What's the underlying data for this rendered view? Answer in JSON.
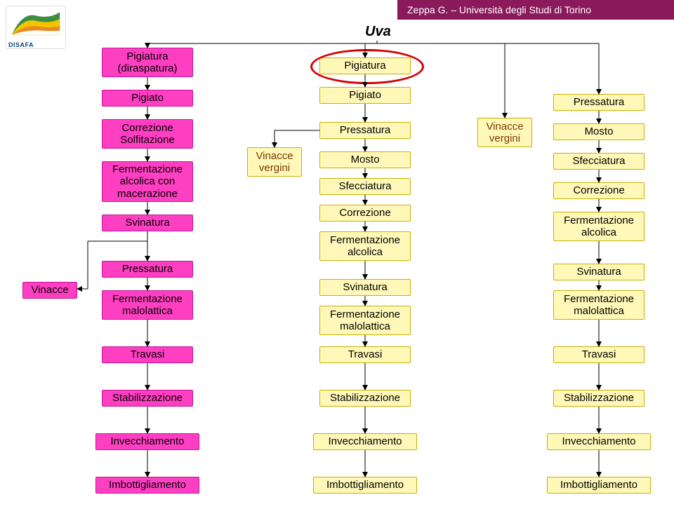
{
  "header": "Zeppa G. – Università degli Studi di Torino",
  "logo_text": "DISAFA",
  "uva": "Uva",
  "col1": {
    "vinacce": "Vinacce",
    "steps": [
      "Pigiatura\n(diraspatura)",
      "Pigiato",
      "Correzione\nSolfitazione",
      "Fermentazione\nalcolica con\nmacerazione",
      "Svinatura",
      "Pressatura",
      "Fermentazione\nmalolattica",
      "Travasi",
      "Stabilizzazione",
      "Invecchiamento",
      "Imbottigliamento"
    ]
  },
  "col2": {
    "vinacce_vergini": "Vinacce\nvergini",
    "steps": [
      "Pigiatura",
      "Pigiato",
      "Pressatura",
      "Mosto",
      "Sfecciatura",
      "Correzione",
      "Fermentazione\nalcolica",
      "Svinatura",
      "Fermentazione\nmalolattica",
      "Travasi",
      "Stabilizzazione",
      "Invecchiamento",
      "Imbottigliamento"
    ]
  },
  "col3": {
    "vinacce_vergini": "Vinacce\nvergini",
    "steps": [
      "Pressatura",
      "Mosto",
      "Sfecciatura",
      "Correzione",
      "Fermentazione\nalcolica",
      "Svinatura",
      "Fermentazione\nmalolattica",
      "Travasi",
      "Stabilizzazione",
      "Invecchiamento",
      "Imbottigliamento"
    ]
  },
  "colors": {
    "magenta_fill": "#ff3fc2",
    "magenta_border": "#c0159a",
    "yellow_fill": "#fff8b8",
    "yellow_border": "#c9b000",
    "header_bg": "#8a1a5c",
    "ellipse": "#d40000"
  }
}
